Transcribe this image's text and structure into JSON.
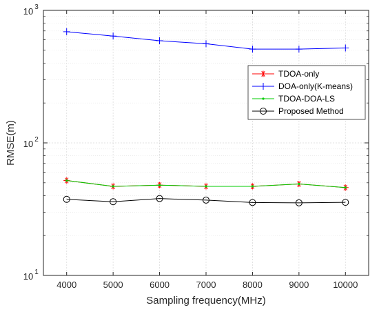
{
  "chart_data": {
    "type": "line",
    "xlabel": "Sampling frequency(MHz)",
    "ylabel": "RMSE(m)",
    "x": [
      4000,
      5000,
      6000,
      7000,
      8000,
      9000,
      10000
    ],
    "xlim": [
      3500,
      10500
    ],
    "ylim": [
      10,
      1000
    ],
    "yscale": "log",
    "grid": true,
    "legend_position": "right",
    "x_ticks": [
      "4000",
      "5000",
      "6000",
      "7000",
      "8000",
      "9000",
      "10000"
    ],
    "y_ticks": [
      {
        "value": 10,
        "base": "10",
        "exp": "1"
      },
      {
        "value": 100,
        "base": "10",
        "exp": "2"
      },
      {
        "value": 1000,
        "base": "10",
        "exp": "3"
      }
    ],
    "series": [
      {
        "name": "TDOA-only",
        "color": "#ff0000",
        "marker": "asterisk",
        "values": [
          52,
          47,
          48,
          47,
          47,
          49,
          46
        ]
      },
      {
        "name": "DOA-only(K-means)",
        "color": "#0000ff",
        "marker": "plus",
        "values": [
          690,
          640,
          590,
          560,
          510,
          510,
          520
        ]
      },
      {
        "name": "TDOA-DOA-LS",
        "color": "#00cc00",
        "marker": "dot",
        "values": [
          52,
          47,
          48,
          47,
          47,
          49,
          46
        ]
      },
      {
        "name": "Proposed Method",
        "color": "#000000",
        "marker": "circle",
        "values": [
          37.5,
          36,
          38,
          37,
          35.5,
          35.3,
          35.6
        ]
      }
    ]
  }
}
